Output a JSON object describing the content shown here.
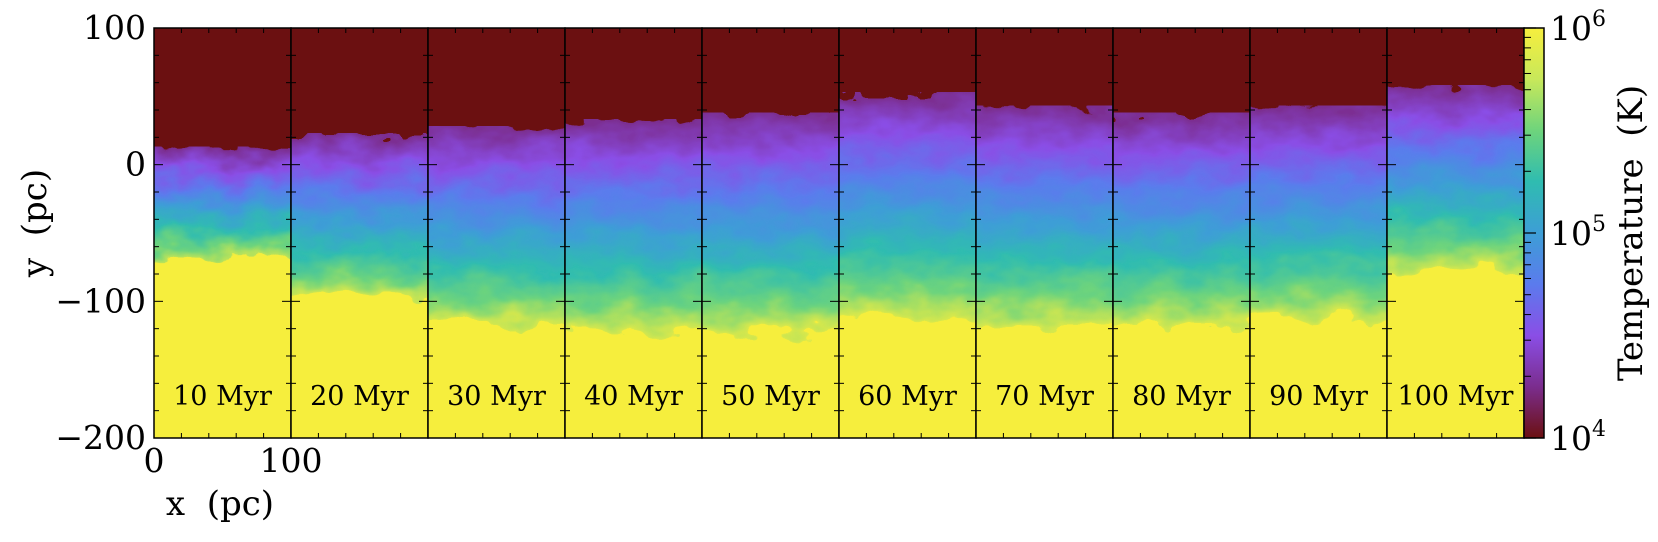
{
  "chart_data": {
    "type": "heatmap",
    "title": "",
    "xlabel": "x  (pc)",
    "ylabel": "y  (pc)",
    "xlim": [
      0,
      100
    ],
    "ylim": [
      -200,
      100
    ],
    "x_ticks": [
      "0",
      "100"
    ],
    "y_ticks": [
      "100",
      "0",
      "−100",
      "−200"
    ],
    "y_tick_values": [
      100,
      0,
      -100,
      -200
    ],
    "colorbar": {
      "label": "Temperature  (K)",
      "scale": "log",
      "min_K": 10000,
      "max_K": 1000000,
      "ticks": [
        {
          "base": "10",
          "exp": "6",
          "value": 1000000
        },
        {
          "base": "10",
          "exp": "5",
          "value": 100000
        },
        {
          "base": "10",
          "exp": "4",
          "value": 10000
        }
      ],
      "colors": [
        "#6b1011",
        "#7b2d8e",
        "#8a4ee6",
        "#5b7bed",
        "#3d9ed6",
        "#2fbcb0",
        "#6ed47c",
        "#c8e85a",
        "#f6ee3e"
      ]
    },
    "panels": [
      {
        "label": "10 Myr",
        "time_myr": 10,
        "hot_top_pc": 0,
        "cool_bottom_pc": -60
      },
      {
        "label": "20 Myr",
        "time_myr": 20,
        "hot_top_pc": 10,
        "cool_bottom_pc": -90
      },
      {
        "label": "30 Myr",
        "time_myr": 30,
        "hot_top_pc": 15,
        "cool_bottom_pc": -110
      },
      {
        "label": "40 Myr",
        "time_myr": 40,
        "hot_top_pc": 20,
        "cool_bottom_pc": -115
      },
      {
        "label": "50 Myr",
        "time_myr": 50,
        "hot_top_pc": 25,
        "cool_bottom_pc": -115
      },
      {
        "label": "60 Myr",
        "time_myr": 60,
        "hot_top_pc": 40,
        "cool_bottom_pc": -105
      },
      {
        "label": "70 Myr",
        "time_myr": 70,
        "hot_top_pc": 30,
        "cool_bottom_pc": -110
      },
      {
        "label": "80 Myr",
        "time_myr": 80,
        "hot_top_pc": 25,
        "cool_bottom_pc": -110
      },
      {
        "label": "90 Myr",
        "time_myr": 90,
        "hot_top_pc": 30,
        "cool_bottom_pc": -105
      },
      {
        "label": "100 Myr",
        "time_myr": 100,
        "hot_top_pc": 45,
        "cool_bottom_pc": -70
      }
    ]
  }
}
